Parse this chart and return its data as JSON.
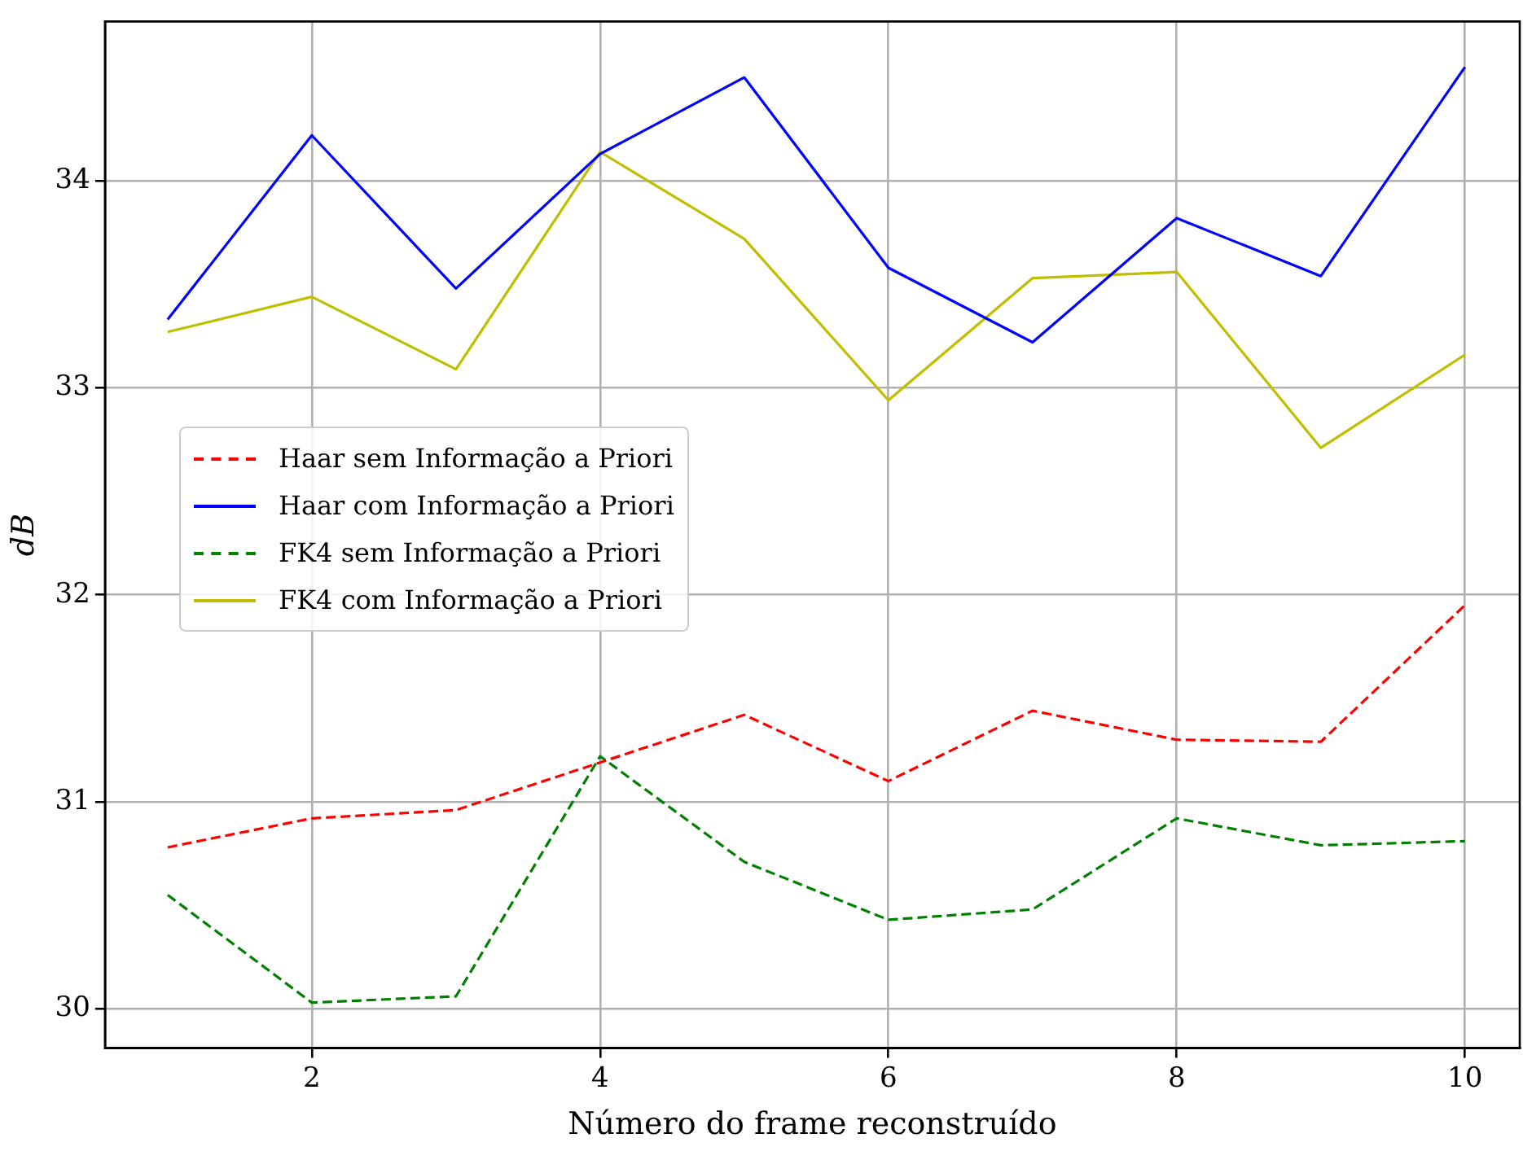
{
  "chart_data": {
    "type": "line",
    "xlabel": "Número do frame reconstruído",
    "ylabel": "dB",
    "x": [
      1,
      2,
      3,
      4,
      5,
      6,
      7,
      8,
      9,
      10
    ],
    "series": [
      {
        "name": "Haar sem Informação a Priori",
        "color": "#ff0000",
        "line_style": "dashed",
        "values": [
          30.78,
          30.92,
          30.96,
          31.19,
          31.42,
          31.1,
          31.44,
          31.3,
          31.29,
          31.95
        ]
      },
      {
        "name": "Haar com Informação a Priori",
        "color": "#0000ff",
        "line_style": "solid",
        "values": [
          33.33,
          34.22,
          33.48,
          34.13,
          34.5,
          33.58,
          33.22,
          33.82,
          33.54,
          34.55
        ]
      },
      {
        "name": "FK4 sem Informação a Priori",
        "color": "#008000",
        "line_style": "dashed",
        "values": [
          30.55,
          30.03,
          30.06,
          31.22,
          30.71,
          30.43,
          30.48,
          30.92,
          30.79,
          30.81
        ]
      },
      {
        "name": "FK4 com Informação a Priori",
        "color": "#bfbf00",
        "line_style": "solid",
        "values": [
          33.27,
          33.44,
          33.09,
          34.14,
          33.72,
          32.94,
          33.53,
          33.56,
          32.71,
          33.16
        ]
      }
    ],
    "xlim": [
      0.565,
      10.38
    ],
    "xticks": [
      2,
      4,
      6,
      8,
      10
    ],
    "ylim": [
      29.81,
      34.77
    ],
    "yticks": [
      30,
      31,
      32,
      33,
      34
    ],
    "grid": true,
    "legend": "center left",
    "marker": "none"
  }
}
